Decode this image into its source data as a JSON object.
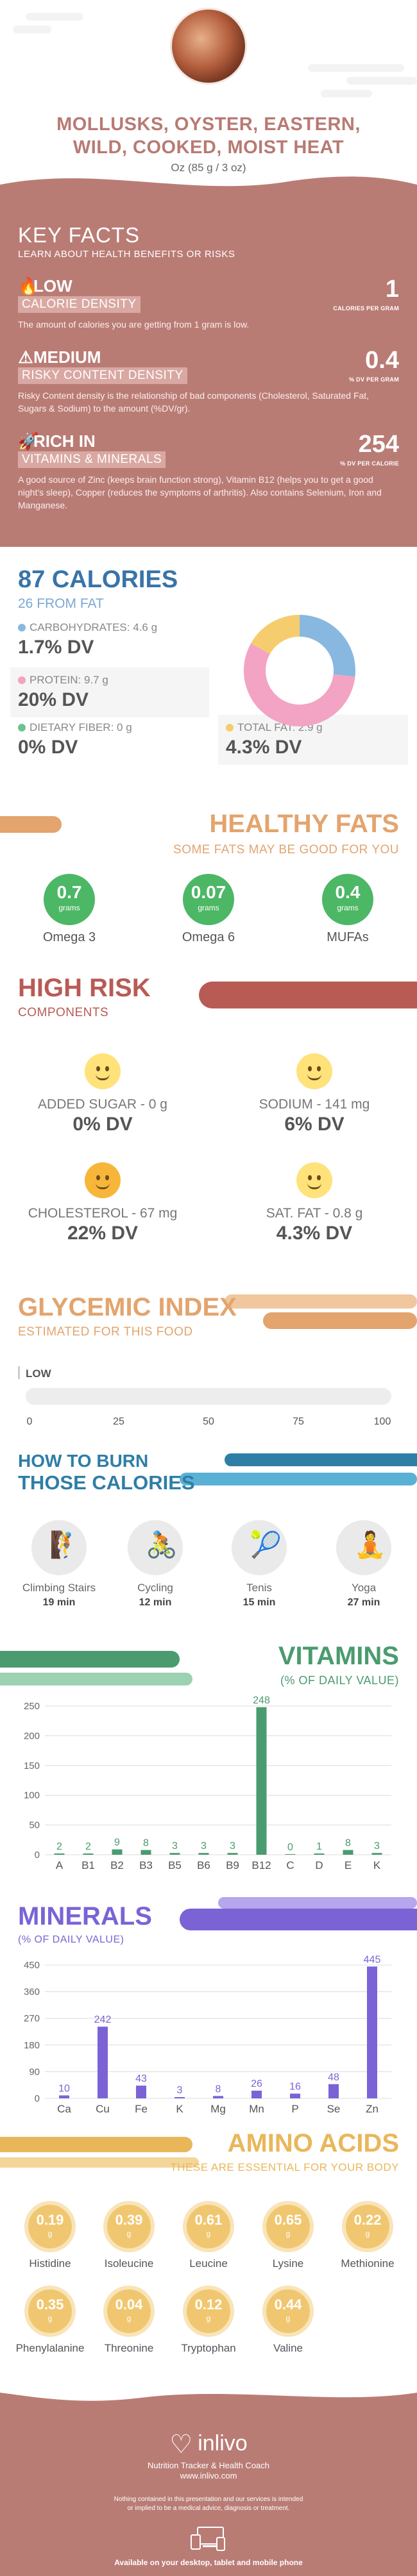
{
  "header": {
    "title_line1": "MOLLUSKS, OYSTER, EASTERN,",
    "title_line2": "WILD, COOKED, MOIST HEAT",
    "serving": "Oz (85 g / 3 oz)"
  },
  "key_facts": {
    "title": "KEY FACTS",
    "subtitle": "LEARN ABOUT HEALTH BENEFITS OR RISKS",
    "calorie_density": {
      "level": "LOW",
      "tag": "CALORIE DENSITY",
      "value": "1",
      "unit": "CALORIES PER GRAM",
      "description": "The amount of calories you are getting from 1 gram is low."
    },
    "risky_content": {
      "level": "MEDIUM",
      "tag": "RISKY CONTENT DENSITY",
      "value": "0.4",
      "unit": "% DV PER GRAM",
      "description": "Risky Content density is the relationship of bad components (Cholesterol, Saturated Fat, Sugars & Sodium) to the amount (%DV/gr)."
    },
    "vitamins_minerals": {
      "level": "RICH  IN",
      "tag": "VITAMINS & MINERALS",
      "value": "254",
      "unit": "% DV PER CALORIE",
      "description": "A good source of Zinc (keeps brain function strong), Vitamin B12 (helps you to get a good night's sleep), Copper (reduces the symptoms of arthritis). Also contains Selenium, Iron and Manganese."
    }
  },
  "calories": {
    "title": "87 CALORIES",
    "from_fat": "26 FROM FAT",
    "carbohydrates": {
      "label": "CARBOHYDRATES: 4.6 g",
      "dv": "1.7% DV",
      "color": "#88b8e0"
    },
    "protein": {
      "label": "PROTEIN: 9.7 g",
      "dv": "20% DV",
      "color": "#f3a3c3"
    },
    "dietary_fiber": {
      "label": "DIETARY FIBER: 0 g",
      "dv": "0% DV",
      "color": "#6cc38f"
    },
    "total_fat": {
      "label": "TOTAL FAT: 2.9 g",
      "dv": "4.3% DV",
      "color": "#f5cd6e"
    }
  },
  "healthy_fats": {
    "title": "HEALTHY FATS",
    "subtitle": "SOME FATS MAY BE GOOD FOR YOU",
    "items": [
      {
        "value": "0.7",
        "unit": "grams",
        "name": "Omega 3"
      },
      {
        "value": "0.07",
        "unit": "grams",
        "name": "Omega 6"
      },
      {
        "value": "0.4",
        "unit": "grams",
        "name": "MUFAs"
      }
    ]
  },
  "high_risk": {
    "title": "HIGH RISK",
    "subtitle": "COMPONENTS",
    "items": [
      {
        "label": "ADDED SUGAR - 0 g",
        "dv": "0% DV"
      },
      {
        "label": "SODIUM - 141 mg",
        "dv": "6% DV"
      },
      {
        "label": "CHOLESTEROL - 67 mg",
        "dv": "22% DV"
      },
      {
        "label": "SAT. FAT - 0.8 g",
        "dv": "4.3% DV"
      }
    ]
  },
  "glycemic": {
    "title": "GLYCEMIC INDEX",
    "subtitle": "ESTIMATED FOR THIS FOOD",
    "level": "LOW",
    "ticks": [
      "0",
      "25",
      "50",
      "75",
      "100"
    ]
  },
  "burn": {
    "title_line1": "HOW TO BURN",
    "title_line2": "THOSE CALORIES",
    "activities": [
      {
        "name": "Climbing Stairs",
        "minutes": "19 min",
        "icon": "stairs-icon"
      },
      {
        "name": "Cycling",
        "minutes": "12 min",
        "icon": "cycling-icon"
      },
      {
        "name": "Tenis",
        "minutes": "15 min",
        "icon": "tennis-icon"
      },
      {
        "name": "Yoga",
        "minutes": "27 min",
        "icon": "yoga-icon"
      }
    ]
  },
  "vitamins": {
    "title": "VITAMINS",
    "subtitle": "(% OF DAILY VALUE)"
  },
  "minerals": {
    "title": "MINERALS",
    "subtitle": "(% OF DAILY VALUE)"
  },
  "amino": {
    "title": "AMINO ACIDS",
    "subtitle": "THESE ARE ESSENTIAL FOR YOUR BODY",
    "items": [
      {
        "value": "0.19",
        "unit": "g",
        "name": "Histidine"
      },
      {
        "value": "0.39",
        "unit": "g",
        "name": "Isoleucine"
      },
      {
        "value": "0.61",
        "unit": "g",
        "name": "Leucine"
      },
      {
        "value": "0.65",
        "unit": "g",
        "name": "Lysine"
      },
      {
        "value": "0.22",
        "unit": "g",
        "name": "Methionine"
      },
      {
        "value": "0.35",
        "unit": "g",
        "name": "Phenylalanine"
      },
      {
        "value": "0.04",
        "unit": "g",
        "name": "Threonine"
      },
      {
        "value": "0.12",
        "unit": "g",
        "name": "Tryptophan"
      },
      {
        "value": "0.44",
        "unit": "g",
        "name": "Valine"
      }
    ]
  },
  "footer": {
    "brand": "inlivo",
    "tagline": "Nutrition Tracker & Health Coach",
    "site": "www.inlivo.com",
    "disclaimer": "Nothing contained in this presentation and our services is intended or implied to be a medical advice, diagnosis or treatment.",
    "available": "Available on your desktop, tablet and mobile phone"
  },
  "chart_data": [
    {
      "type": "pie",
      "categories": [
        "Carbohydrates",
        "Protein",
        "Dietary Fiber",
        "Total Fat"
      ],
      "values": [
        4.6,
        9.7,
        0,
        2.9
      ],
      "colors": [
        "#88b8e0",
        "#f3a3c3",
        "#6cc38f",
        "#f5cd6e"
      ],
      "title": ""
    },
    {
      "type": "bar",
      "title": "VITAMINS",
      "categories": [
        "A",
        "B1",
        "B2",
        "B3",
        "B5",
        "B6",
        "B9",
        "B12",
        "C",
        "D",
        "E",
        "K"
      ],
      "values": [
        2,
        2,
        9,
        8,
        3,
        3,
        3,
        248,
        0,
        1,
        8,
        3
      ],
      "yticks": [
        0,
        50,
        100,
        150,
        200,
        250
      ],
      "ylim": [
        0,
        250
      ],
      "color": "#4a9b6f",
      "grid": true
    },
    {
      "type": "bar",
      "title": "MINERALS",
      "categories": [
        "Ca",
        "Cu",
        "Fe",
        "K",
        "Mg",
        "Mn",
        "P",
        "Se",
        "Zn"
      ],
      "values": [
        10,
        242,
        43,
        3,
        8,
        26,
        16,
        48,
        445
      ],
      "yticks": [
        0,
        90,
        180,
        270,
        360,
        450
      ],
      "ylim": [
        0,
        450
      ],
      "color": "#7b63d6",
      "grid": true
    }
  ]
}
